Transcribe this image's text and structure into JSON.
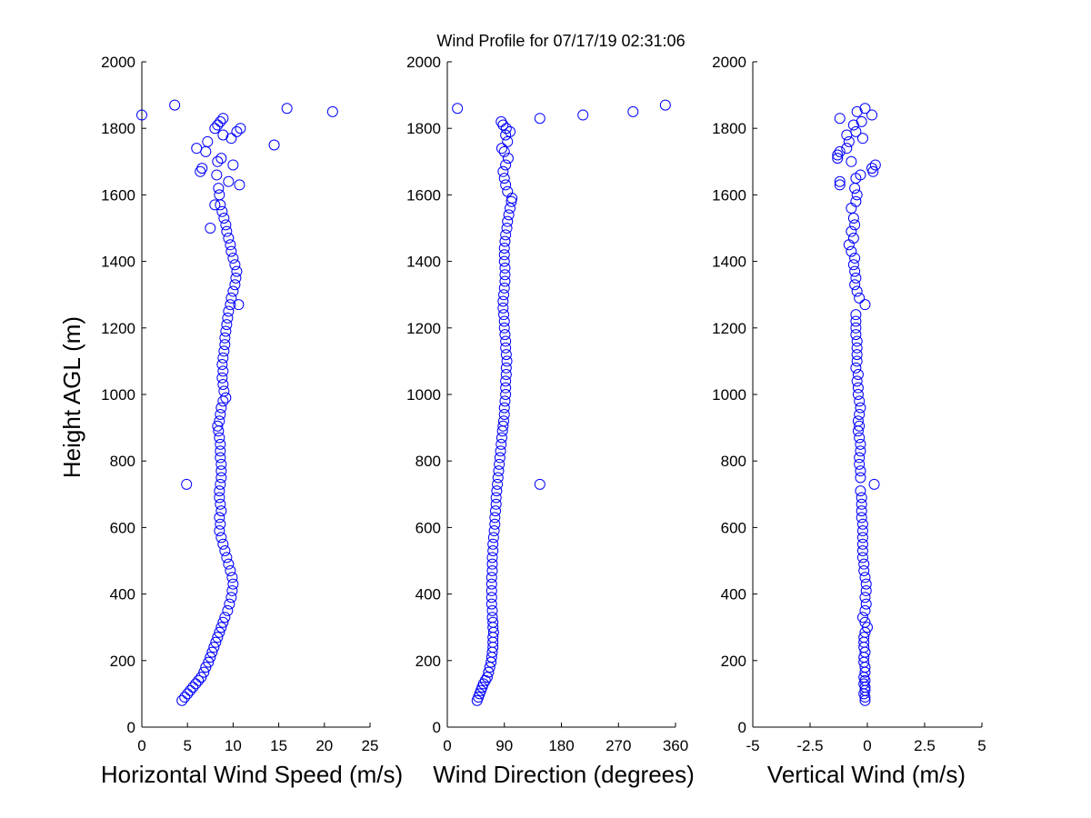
{
  "chart_data": [
    {
      "type": "scatter",
      "title": "Wind Profile for  07/17/19 02:31:06",
      "xlabel": "Horizontal Wind Speed (m/s)",
      "ylabel": "Height AGL (m)",
      "xlim": [
        0,
        25
      ],
      "ylim": [
        0,
        2000
      ],
      "xticks": [
        0,
        5,
        10,
        15,
        20,
        25
      ],
      "xtick_labels": [
        "0",
        "5",
        "10",
        "15",
        "20",
        "25"
      ],
      "yticks": [
        0,
        200,
        400,
        600,
        800,
        1000,
        1200,
        1400,
        1600,
        1800,
        2000
      ],
      "ytick_labels": [
        "0",
        "200",
        "400",
        "600",
        "800",
        "1000",
        "1200",
        "1400",
        "1600",
        "1800",
        "2000"
      ],
      "marker_color": "#0000ff",
      "points": [
        [
          4.4,
          80
        ],
        [
          4.7,
          90
        ],
        [
          5.0,
          100
        ],
        [
          5.3,
          110
        ],
        [
          5.6,
          120
        ],
        [
          5.9,
          130
        ],
        [
          6.2,
          140
        ],
        [
          6.5,
          150
        ],
        [
          6.8,
          165
        ],
        [
          7.0,
          180
        ],
        [
          7.3,
          195
        ],
        [
          7.5,
          210
        ],
        [
          7.7,
          225
        ],
        [
          7.9,
          240
        ],
        [
          8.1,
          255
        ],
        [
          8.3,
          270
        ],
        [
          8.5,
          285
        ],
        [
          8.7,
          300
        ],
        [
          8.9,
          315
        ],
        [
          9.1,
          330
        ],
        [
          9.4,
          350
        ],
        [
          9.6,
          370
        ],
        [
          9.8,
          390
        ],
        [
          9.9,
          410
        ],
        [
          10.0,
          430
        ],
        [
          9.9,
          450
        ],
        [
          9.7,
          470
        ],
        [
          9.5,
          490
        ],
        [
          9.3,
          510
        ],
        [
          9.1,
          530
        ],
        [
          8.9,
          550
        ],
        [
          8.7,
          570
        ],
        [
          8.5,
          590
        ],
        [
          8.6,
          610
        ],
        [
          8.5,
          630
        ],
        [
          8.7,
          650
        ],
        [
          8.6,
          670
        ],
        [
          8.5,
          690
        ],
        [
          8.5,
          710
        ],
        [
          8.6,
          730
        ],
        [
          8.7,
          750
        ],
        [
          8.7,
          770
        ],
        [
          8.7,
          790
        ],
        [
          8.6,
          810
        ],
        [
          8.6,
          830
        ],
        [
          8.6,
          850
        ],
        [
          8.5,
          870
        ],
        [
          8.4,
          890
        ],
        [
          8.3,
          905
        ],
        [
          8.5,
          920
        ],
        [
          8.6,
          940
        ],
        [
          8.7,
          960
        ],
        [
          8.9,
          980
        ],
        [
          9.2,
          990
        ],
        [
          9.0,
          1010
        ],
        [
          8.9,
          1030
        ],
        [
          8.8,
          1050
        ],
        [
          8.9,
          1070
        ],
        [
          8.8,
          1090
        ],
        [
          8.9,
          1110
        ],
        [
          9.0,
          1130
        ],
        [
          9.1,
          1150
        ],
        [
          9.1,
          1170
        ],
        [
          9.2,
          1190
        ],
        [
          9.3,
          1210
        ],
        [
          9.4,
          1230
        ],
        [
          9.5,
          1250
        ],
        [
          9.7,
          1270
        ],
        [
          9.8,
          1290
        ],
        [
          10.0,
          1310
        ],
        [
          10.2,
          1330
        ],
        [
          10.3,
          1350
        ],
        [
          10.4,
          1370
        ],
        [
          10.2,
          1390
        ],
        [
          10.0,
          1410
        ],
        [
          9.8,
          1430
        ],
        [
          9.7,
          1450
        ],
        [
          9.5,
          1470
        ],
        [
          9.3,
          1490
        ],
        [
          9.2,
          1510
        ],
        [
          9.0,
          1530
        ],
        [
          8.8,
          1550
        ],
        [
          8.6,
          1570
        ],
        [
          8.5,
          1600
        ],
        [
          8.4,
          1620
        ],
        [
          9.5,
          1640
        ],
        [
          8.2,
          1660
        ],
        [
          7.5,
          1500
        ],
        [
          10.6,
          1270
        ],
        [
          8.0,
          1570
        ],
        [
          6.4,
          1670
        ],
        [
          6.6,
          1680
        ],
        [
          10.0,
          1690
        ],
        [
          8.7,
          1710
        ],
        [
          7.0,
          1730
        ],
        [
          6.0,
          1740
        ],
        [
          14.5,
          1750
        ],
        [
          7.2,
          1760
        ],
        [
          9.8,
          1770
        ],
        [
          8.9,
          1780
        ],
        [
          10.4,
          1790
        ],
        [
          8.0,
          1800
        ],
        [
          10.8,
          1800
        ],
        [
          8.3,
          1810
        ],
        [
          8.6,
          1820
        ],
        [
          8.9,
          1830
        ],
        [
          3.6,
          1870
        ],
        [
          0.0,
          1840
        ],
        [
          15.9,
          1860
        ],
        [
          20.9,
          1850
        ],
        [
          4.9,
          730
        ],
        [
          10.7,
          1630
        ],
        [
          8.3,
          1700
        ]
      ]
    },
    {
      "type": "scatter",
      "title": "",
      "xlabel": "Wind Direction (degrees)",
      "ylabel": "",
      "xlim": [
        0,
        360
      ],
      "ylim": [
        0,
        2000
      ],
      "xticks": [
        0,
        90,
        180,
        270,
        360
      ],
      "xtick_labels": [
        "0",
        "90",
        "180",
        "270",
        "360"
      ],
      "yticks": [
        0,
        200,
        400,
        600,
        800,
        1000,
        1200,
        1400,
        1600,
        1800,
        2000
      ],
      "ytick_labels": [
        "0",
        "200",
        "400",
        "600",
        "800",
        "1000",
        "1200",
        "1400",
        "1600",
        "1800",
        "2000"
      ],
      "marker_color": "#0000ff",
      "points": [
        [
          47,
          80
        ],
        [
          49,
          90
        ],
        [
          51,
          100
        ],
        [
          53,
          110
        ],
        [
          55,
          120
        ],
        [
          57,
          130
        ],
        [
          60,
          140
        ],
        [
          63,
          150
        ],
        [
          65,
          165
        ],
        [
          67,
          180
        ],
        [
          69,
          195
        ],
        [
          70,
          210
        ],
        [
          71,
          225
        ],
        [
          72,
          240
        ],
        [
          72,
          255
        ],
        [
          72,
          270
        ],
        [
          73,
          285
        ],
        [
          72,
          300
        ],
        [
          72,
          315
        ],
        [
          71,
          330
        ],
        [
          71,
          350
        ],
        [
          70,
          370
        ],
        [
          70,
          390
        ],
        [
          70,
          410
        ],
        [
          70,
          430
        ],
        [
          70,
          450
        ],
        [
          71,
          470
        ],
        [
          71,
          490
        ],
        [
          71,
          510
        ],
        [
          72,
          530
        ],
        [
          72,
          550
        ],
        [
          73,
          570
        ],
        [
          74,
          590
        ],
        [
          75,
          610
        ],
        [
          75,
          630
        ],
        [
          76,
          650
        ],
        [
          77,
          670
        ],
        [
          77,
          690
        ],
        [
          78,
          710
        ],
        [
          79,
          730
        ],
        [
          80,
          750
        ],
        [
          81,
          770
        ],
        [
          82,
          790
        ],
        [
          83,
          810
        ],
        [
          84,
          830
        ],
        [
          85,
          850
        ],
        [
          86,
          870
        ],
        [
          87,
          890
        ],
        [
          88,
          905
        ],
        [
          89,
          920
        ],
        [
          90,
          940
        ],
        [
          90,
          960
        ],
        [
          91,
          980
        ],
        [
          92,
          1000
        ],
        [
          92,
          1020
        ],
        [
          92,
          1040
        ],
        [
          93,
          1060
        ],
        [
          93,
          1080
        ],
        [
          94,
          1100
        ],
        [
          93,
          1120
        ],
        [
          92,
          1140
        ],
        [
          92,
          1160
        ],
        [
          91,
          1180
        ],
        [
          90,
          1200
        ],
        [
          90,
          1220
        ],
        [
          89,
          1240
        ],
        [
          88,
          1260
        ],
        [
          88,
          1280
        ],
        [
          89,
          1300
        ],
        [
          90,
          1320
        ],
        [
          91,
          1340
        ],
        [
          91,
          1360
        ],
        [
          91,
          1380
        ],
        [
          90,
          1400
        ],
        [
          90,
          1420
        ],
        [
          90,
          1440
        ],
        [
          91,
          1460
        ],
        [
          92,
          1480
        ],
        [
          94,
          1500
        ],
        [
          95,
          1520
        ],
        [
          97,
          1540
        ],
        [
          99,
          1560
        ],
        [
          101,
          1580
        ],
        [
          102,
          1590
        ],
        [
          95,
          1610
        ],
        [
          92,
          1630
        ],
        [
          90,
          1650
        ],
        [
          88,
          1670
        ],
        [
          92,
          1690
        ],
        [
          96,
          1710
        ],
        [
          90,
          1730
        ],
        [
          86,
          1740
        ],
        [
          95,
          1760
        ],
        [
          92,
          1780
        ],
        [
          99,
          1790
        ],
        [
          93,
          1800
        ],
        [
          88,
          1810
        ],
        [
          85,
          1820
        ],
        [
          16,
          1860
        ],
        [
          146,
          1830
        ],
        [
          214,
          1840
        ],
        [
          293,
          1850
        ],
        [
          344,
          1870
        ],
        [
          146,
          730
        ]
      ]
    },
    {
      "type": "scatter",
      "title": "",
      "xlabel": "Vertical Wind (m/s)",
      "ylabel": "",
      "xlim": [
        -5,
        5
      ],
      "ylim": [
        0,
        2000
      ],
      "xticks": [
        -5,
        -2.5,
        0,
        2.5,
        5
      ],
      "xtick_labels": [
        "-5",
        "-2.5",
        "0",
        "2.5",
        "5"
      ],
      "yticks": [
        0,
        200,
        400,
        600,
        800,
        1000,
        1200,
        1400,
        1600,
        1800,
        2000
      ],
      "ytick_labels": [
        "0",
        "200",
        "400",
        "600",
        "800",
        "1000",
        "1200",
        "1400",
        "1600",
        "1800",
        "2000"
      ],
      "marker_color": "#0000ff",
      "points": [
        [
          -0.1,
          80
        ],
        [
          -0.1,
          90
        ],
        [
          -0.15,
          100
        ],
        [
          -0.1,
          110
        ],
        [
          -0.1,
          120
        ],
        [
          -0.15,
          130
        ],
        [
          -0.1,
          140
        ],
        [
          -0.15,
          150
        ],
        [
          -0.1,
          165
        ],
        [
          -0.1,
          180
        ],
        [
          -0.15,
          195
        ],
        [
          -0.15,
          210
        ],
        [
          -0.1,
          225
        ],
        [
          -0.15,
          240
        ],
        [
          -0.15,
          255
        ],
        [
          -0.15,
          270
        ],
        [
          -0.1,
          285
        ],
        [
          0.0,
          300
        ],
        [
          -0.1,
          315
        ],
        [
          -0.2,
          330
        ],
        [
          -0.1,
          350
        ],
        [
          -0.05,
          370
        ],
        [
          -0.1,
          390
        ],
        [
          -0.05,
          410
        ],
        [
          -0.05,
          430
        ],
        [
          -0.1,
          450
        ],
        [
          -0.15,
          470
        ],
        [
          -0.15,
          490
        ],
        [
          -0.2,
          510
        ],
        [
          -0.2,
          530
        ],
        [
          -0.2,
          550
        ],
        [
          -0.2,
          570
        ],
        [
          -0.2,
          590
        ],
        [
          -0.2,
          610
        ],
        [
          -0.25,
          630
        ],
        [
          -0.25,
          650
        ],
        [
          -0.25,
          670
        ],
        [
          -0.25,
          690
        ],
        [
          -0.3,
          710
        ],
        [
          0.3,
          730
        ],
        [
          -0.3,
          750
        ],
        [
          -0.3,
          770
        ],
        [
          -0.35,
          790
        ],
        [
          -0.35,
          810
        ],
        [
          -0.3,
          830
        ],
        [
          -0.3,
          850
        ],
        [
          -0.35,
          870
        ],
        [
          -0.4,
          890
        ],
        [
          -0.35,
          905
        ],
        [
          -0.4,
          920
        ],
        [
          -0.35,
          940
        ],
        [
          -0.3,
          960
        ],
        [
          -0.35,
          980
        ],
        [
          -0.4,
          1000
        ],
        [
          -0.4,
          1020
        ],
        [
          -0.45,
          1040
        ],
        [
          -0.4,
          1060
        ],
        [
          -0.5,
          1080
        ],
        [
          -0.45,
          1100
        ],
        [
          -0.45,
          1120
        ],
        [
          -0.45,
          1140
        ],
        [
          -0.45,
          1160
        ],
        [
          -0.5,
          1180
        ],
        [
          -0.5,
          1200
        ],
        [
          -0.5,
          1220
        ],
        [
          -0.5,
          1240
        ],
        [
          -0.1,
          1270
        ],
        [
          -0.35,
          1290
        ],
        [
          -0.45,
          1310
        ],
        [
          -0.55,
          1330
        ],
        [
          -0.5,
          1350
        ],
        [
          -0.55,
          1370
        ],
        [
          -0.6,
          1390
        ],
        [
          -0.55,
          1410
        ],
        [
          -0.7,
          1430
        ],
        [
          -0.8,
          1450
        ],
        [
          -0.6,
          1470
        ],
        [
          -0.7,
          1490
        ],
        [
          -0.55,
          1510
        ],
        [
          -0.6,
          1530
        ],
        [
          -0.7,
          1560
        ],
        [
          -0.5,
          1580
        ],
        [
          -0.45,
          1600
        ],
        [
          -0.55,
          1620
        ],
        [
          -1.2,
          1640
        ],
        [
          -1.2,
          1630
        ],
        [
          -0.5,
          1650
        ],
        [
          -0.3,
          1660
        ],
        [
          0.25,
          1670
        ],
        [
          0.2,
          1680
        ],
        [
          0.35,
          1690
        ],
        [
          -1.3,
          1710
        ],
        [
          -1.2,
          1730
        ],
        [
          -0.9,
          1740
        ],
        [
          -0.7,
          1700
        ],
        [
          -0.9,
          1780
        ],
        [
          -0.2,
          1770
        ],
        [
          -0.5,
          1790
        ],
        [
          -0.6,
          1810
        ],
        [
          -0.25,
          1820
        ],
        [
          -1.2,
          1830
        ],
        [
          -1.3,
          1720
        ],
        [
          0.2,
          1840
        ],
        [
          -0.45,
          1850
        ],
        [
          -0.1,
          1860
        ],
        [
          -0.8,
          1760
        ]
      ]
    }
  ]
}
